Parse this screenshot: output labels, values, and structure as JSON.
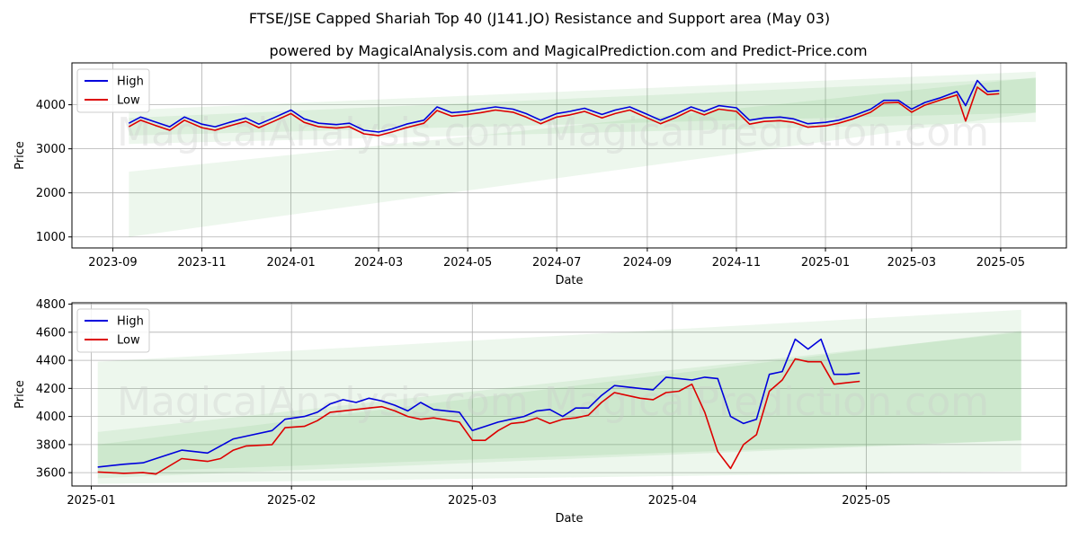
{
  "titles": {
    "main": "FTSE/JSE Capped Shariah Top 40  (J141.JO) Resistance and Support area (May 03)",
    "sub": "powered by MagicalAnalysis.com and MagicalPrediction.com and Predict-Price.com"
  },
  "watermark": {
    "left": "MagicalAnalysis.com",
    "right": "MagicalPrediction.com"
  },
  "colors": {
    "high": "#0000dd",
    "low": "#dd0000",
    "band": "#4caf50"
  },
  "chart_data": [
    {
      "type": "line",
      "xlabel": "Date",
      "ylabel": "Price",
      "grid": true,
      "legend": "top-left",
      "xlim": [
        "2023-08-04",
        "2025-06-15"
      ],
      "ylim": [
        750,
        4950
      ],
      "xticks": [
        "2023-09-01",
        "2023-11-01",
        "2024-01-01",
        "2024-03-01",
        "2024-05-01",
        "2024-07-01",
        "2024-09-01",
        "2024-11-01",
        "2025-01-01",
        "2025-03-01",
        "2025-05-01"
      ],
      "xtick_labels": [
        "2023-09",
        "2023-11",
        "2024-01",
        "2024-03",
        "2024-05",
        "2024-07",
        "2024-09",
        "2024-11",
        "2025-01",
        "2025-03",
        "2025-05"
      ],
      "yticks": [
        1000,
        2000,
        3000,
        4000
      ],
      "ytick_labels": [
        "1000",
        "2000",
        "3000",
        "4000"
      ],
      "series": [
        {
          "name": "High",
          "x": [
            "2023-09-12",
            "2023-09-20",
            "2023-10-01",
            "2023-10-10",
            "2023-10-20",
            "2023-11-01",
            "2023-11-10",
            "2023-11-20",
            "2023-12-01",
            "2023-12-10",
            "2023-12-20",
            "2024-01-01",
            "2024-01-10",
            "2024-01-20",
            "2024-02-01",
            "2024-02-10",
            "2024-02-20",
            "2024-03-01",
            "2024-03-10",
            "2024-03-20",
            "2024-04-01",
            "2024-04-10",
            "2024-04-20",
            "2024-05-01",
            "2024-05-10",
            "2024-05-20",
            "2024-06-01",
            "2024-06-10",
            "2024-06-20",
            "2024-07-01",
            "2024-07-10",
            "2024-07-20",
            "2024-08-01",
            "2024-08-10",
            "2024-08-20",
            "2024-09-01",
            "2024-09-10",
            "2024-09-20",
            "2024-10-01",
            "2024-10-10",
            "2024-10-20",
            "2024-11-01",
            "2024-11-10",
            "2024-11-20",
            "2024-12-01",
            "2024-12-10",
            "2024-12-20",
            "2025-01-01",
            "2025-01-10",
            "2025-01-20",
            "2025-02-01",
            "2025-02-10",
            "2025-02-20",
            "2025-03-01",
            "2025-03-10",
            "2025-03-20",
            "2025-04-01",
            "2025-04-07",
            "2025-04-15",
            "2025-04-22",
            "2025-04-30"
          ],
          "values": [
            3580,
            3720,
            3600,
            3500,
            3720,
            3560,
            3500,
            3600,
            3700,
            3560,
            3700,
            3880,
            3680,
            3580,
            3550,
            3580,
            3420,
            3380,
            3450,
            3560,
            3650,
            3950,
            3820,
            3850,
            3900,
            3950,
            3900,
            3800,
            3650,
            3800,
            3850,
            3920,
            3780,
            3880,
            3950,
            3780,
            3650,
            3780,
            3950,
            3850,
            3980,
            3930,
            3650,
            3700,
            3720,
            3680,
            3570,
            3600,
            3650,
            3750,
            3900,
            4100,
            4100,
            3900,
            4050,
            4150,
            4300,
            3980,
            4550,
            4300,
            4320
          ]
        },
        {
          "name": "Low",
          "x": [
            "2023-09-12",
            "2023-09-20",
            "2023-10-01",
            "2023-10-10",
            "2023-10-20",
            "2023-11-01",
            "2023-11-10",
            "2023-11-20",
            "2023-12-01",
            "2023-12-10",
            "2023-12-20",
            "2024-01-01",
            "2024-01-10",
            "2024-01-20",
            "2024-02-01",
            "2024-02-10",
            "2024-02-20",
            "2024-03-01",
            "2024-03-10",
            "2024-03-20",
            "2024-04-01",
            "2024-04-10",
            "2024-04-20",
            "2024-05-01",
            "2024-05-10",
            "2024-05-20",
            "2024-06-01",
            "2024-06-10",
            "2024-06-20",
            "2024-07-01",
            "2024-07-10",
            "2024-07-20",
            "2024-08-01",
            "2024-08-10",
            "2024-08-20",
            "2024-09-01",
            "2024-09-10",
            "2024-09-20",
            "2024-10-01",
            "2024-10-10",
            "2024-10-20",
            "2024-11-01",
            "2024-11-10",
            "2024-11-20",
            "2024-12-01",
            "2024-12-10",
            "2024-12-20",
            "2025-01-01",
            "2025-01-10",
            "2025-01-20",
            "2025-02-01",
            "2025-02-10",
            "2025-02-20",
            "2025-03-01",
            "2025-03-10",
            "2025-03-20",
            "2025-04-01",
            "2025-04-07",
            "2025-04-15",
            "2025-04-22",
            "2025-04-30"
          ],
          "values": [
            3500,
            3650,
            3520,
            3420,
            3650,
            3480,
            3420,
            3520,
            3620,
            3480,
            3620,
            3800,
            3600,
            3500,
            3470,
            3500,
            3340,
            3300,
            3380,
            3480,
            3580,
            3870,
            3740,
            3780,
            3820,
            3880,
            3830,
            3720,
            3570,
            3720,
            3770,
            3850,
            3700,
            3800,
            3880,
            3700,
            3570,
            3700,
            3880,
            3770,
            3900,
            3850,
            3560,
            3620,
            3640,
            3600,
            3490,
            3520,
            3580,
            3680,
            3830,
            4040,
            4050,
            3830,
            3990,
            4100,
            4220,
            3630,
            4400,
            4230,
            4250
          ]
        }
      ],
      "bands": [
        {
          "x": [
            "2023-09-12",
            "2025-05-25"
          ],
          "lower": [
            1000,
            3820
          ],
          "upper": [
            2480,
            4620
          ],
          "opacity": 0.1
        },
        {
          "x": [
            "2023-09-12",
            "2025-05-25"
          ],
          "lower": [
            3110,
            3610
          ],
          "upper": [
            3880,
            4750
          ],
          "opacity": 0.1
        },
        {
          "x": [
            "2023-09-12",
            "2025-05-25"
          ],
          "lower": [
            3300,
            3820
          ],
          "upper": [
            3700,
            4600
          ],
          "opacity": 0.1
        }
      ]
    },
    {
      "type": "line",
      "xlabel": "Date",
      "ylabel": "Price",
      "grid": true,
      "legend": "top-left",
      "xlim": [
        "2024-12-29",
        "2025-06-01"
      ],
      "ylim": [
        3505,
        4810
      ],
      "xticks": [
        "2025-01-01",
        "2025-02-01",
        "2025-03-01",
        "2025-04-01",
        "2025-05-01"
      ],
      "xtick_labels": [
        "2025-01",
        "2025-02",
        "2025-03",
        "2025-04",
        "2025-05"
      ],
      "yticks": [
        3600,
        3800,
        4000,
        4200,
        4400,
        4600,
        4800
      ],
      "ytick_labels": [
        "3600",
        "3800",
        "4000",
        "4200",
        "4400",
        "4600",
        "4800"
      ],
      "series": [
        {
          "name": "High",
          "x": [
            "2025-01-02",
            "2025-01-06",
            "2025-01-09",
            "2025-01-11",
            "2025-01-15",
            "2025-01-17",
            "2025-01-19",
            "2025-01-21",
            "2025-01-23",
            "2025-01-25",
            "2025-01-29",
            "2025-01-31",
            "2025-02-03",
            "2025-02-05",
            "2025-02-07",
            "2025-02-09",
            "2025-02-11",
            "2025-02-13",
            "2025-02-15",
            "2025-02-17",
            "2025-02-19",
            "2025-02-21",
            "2025-02-23",
            "2025-02-25",
            "2025-02-27",
            "2025-03-01",
            "2025-03-03",
            "2025-03-05",
            "2025-03-07",
            "2025-03-09",
            "2025-03-11",
            "2025-03-13",
            "2025-03-15",
            "2025-03-17",
            "2025-03-19",
            "2025-03-21",
            "2025-03-23",
            "2025-03-25",
            "2025-03-27",
            "2025-03-29",
            "2025-03-31",
            "2025-04-02",
            "2025-04-04",
            "2025-04-06",
            "2025-04-08",
            "2025-04-10",
            "2025-04-12",
            "2025-04-14",
            "2025-04-16",
            "2025-04-18",
            "2025-04-20",
            "2025-04-22",
            "2025-04-24",
            "2025-04-26",
            "2025-04-28",
            "2025-04-30"
          ],
          "values": [
            3640,
            3660,
            3670,
            3700,
            3760,
            3750,
            3740,
            3790,
            3840,
            3860,
            3900,
            3980,
            4000,
            4030,
            4090,
            4120,
            4100,
            4130,
            4110,
            4080,
            4040,
            4100,
            4050,
            4040,
            4030,
            3900,
            3930,
            3960,
            3980,
            4000,
            4040,
            4050,
            4000,
            4060,
            4060,
            4150,
            4220,
            4210,
            4200,
            4190,
            4280,
            4270,
            4260,
            4280,
            4270,
            4000,
            3950,
            3980,
            4300,
            4320,
            4550,
            4480,
            4550,
            4300,
            4300,
            4310
          ]
        },
        {
          "name": "Low",
          "x": [
            "2025-01-02",
            "2025-01-06",
            "2025-01-09",
            "2025-01-11",
            "2025-01-15",
            "2025-01-17",
            "2025-01-19",
            "2025-01-21",
            "2025-01-23",
            "2025-01-25",
            "2025-01-29",
            "2025-01-31",
            "2025-02-03",
            "2025-02-05",
            "2025-02-07",
            "2025-02-09",
            "2025-02-11",
            "2025-02-13",
            "2025-02-15",
            "2025-02-17",
            "2025-02-19",
            "2025-02-21",
            "2025-02-23",
            "2025-02-25",
            "2025-02-27",
            "2025-03-01",
            "2025-03-03",
            "2025-03-05",
            "2025-03-07",
            "2025-03-09",
            "2025-03-11",
            "2025-03-13",
            "2025-03-15",
            "2025-03-17",
            "2025-03-19",
            "2025-03-21",
            "2025-03-23",
            "2025-03-25",
            "2025-03-27",
            "2025-03-29",
            "2025-03-31",
            "2025-04-02",
            "2025-04-04",
            "2025-04-06",
            "2025-04-08",
            "2025-04-10",
            "2025-04-12",
            "2025-04-14",
            "2025-04-16",
            "2025-04-18",
            "2025-04-20",
            "2025-04-22",
            "2025-04-24",
            "2025-04-26",
            "2025-04-28",
            "2025-04-30"
          ],
          "values": [
            3605,
            3595,
            3600,
            3590,
            3700,
            3690,
            3680,
            3700,
            3760,
            3790,
            3800,
            3920,
            3930,
            3970,
            4030,
            4040,
            4050,
            4060,
            4070,
            4040,
            4000,
            3980,
            3990,
            3975,
            3960,
            3830,
            3830,
            3900,
            3950,
            3960,
            3990,
            3950,
            3980,
            3990,
            4010,
            4100,
            4170,
            4150,
            4130,
            4120,
            4170,
            4180,
            4230,
            4030,
            3750,
            3630,
            3800,
            3870,
            4180,
            4260,
            4410,
            4390,
            4390,
            4230,
            4240,
            4250
          ]
        }
      ],
      "bands": [
        {
          "x": [
            "2025-01-02",
            "2025-05-25"
          ],
          "lower": [
            3520,
            3610
          ],
          "upper": [
            4390,
            4760
          ],
          "opacity": 0.1
        },
        {
          "x": [
            "2025-01-02",
            "2025-05-25"
          ],
          "lower": [
            3600,
            3830
          ],
          "upper": [
            3890,
            4600
          ],
          "opacity": 0.1
        },
        {
          "x": [
            "2025-01-02",
            "2025-05-25"
          ],
          "lower": [
            3560,
            3830
          ],
          "upper": [
            3800,
            4610
          ],
          "opacity": 0.1
        }
      ]
    }
  ]
}
